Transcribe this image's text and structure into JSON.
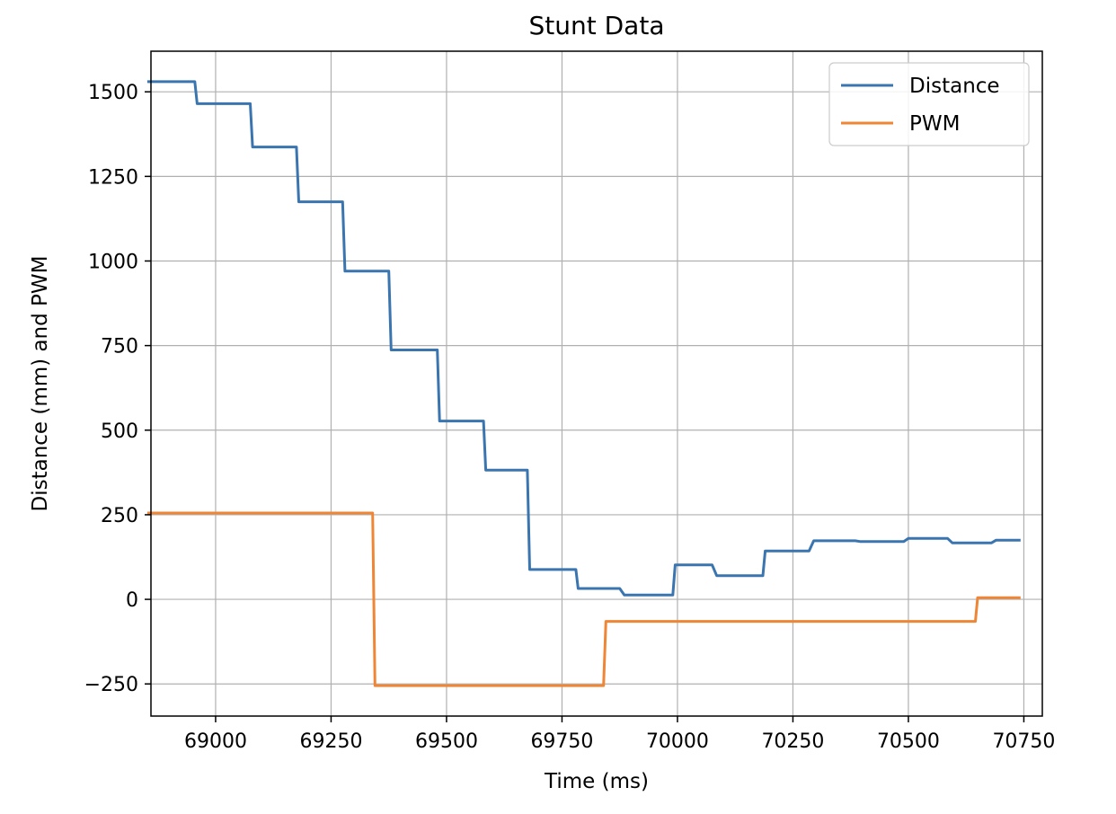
{
  "chart_data": {
    "type": "line",
    "title": "Stunt Data",
    "xlabel": "Time (ms)",
    "ylabel": "Distance (mm) and PWM",
    "xlim": [
      68860,
      70790
    ],
    "ylim": [
      -345,
      1620
    ],
    "xticks": [
      69000,
      69250,
      69500,
      69750,
      70000,
      70250,
      70500,
      70750
    ],
    "yticks": [
      -250,
      0,
      250,
      500,
      750,
      1000,
      1250,
      1500
    ],
    "grid": true,
    "legend_position": "upper-right",
    "series": [
      {
        "name": "Distance",
        "color": "#3b75af",
        "x": [
          68855,
          68955,
          68960,
          69075,
          69080,
          69175,
          69180,
          69275,
          69280,
          69375,
          69380,
          69480,
          69485,
          69580,
          69585,
          69675,
          69680,
          69780,
          69785,
          69875,
          69885,
          69990,
          69995,
          70075,
          70085,
          70185,
          70190,
          70285,
          70295,
          70385,
          70395,
          70490,
          70500,
          70585,
          70595,
          70680,
          70690,
          70740
        ],
        "y": [
          1530,
          1530,
          1465,
          1465,
          1337,
          1337,
          1175,
          1175,
          970,
          970,
          737,
          737,
          527,
          527,
          382,
          382,
          88,
          88,
          32,
          32,
          13,
          13,
          102,
          102,
          70,
          70,
          143,
          143,
          173,
          173,
          171,
          171,
          180,
          180,
          167,
          167,
          175,
          175
        ]
      },
      {
        "name": "PWM",
        "color": "#ef8636",
        "x": [
          68855,
          69340,
          69345,
          69840,
          69845,
          70645,
          70650,
          70740
        ],
        "y": [
          255,
          255,
          -255,
          -255,
          -65,
          -65,
          5,
          5
        ]
      }
    ]
  }
}
